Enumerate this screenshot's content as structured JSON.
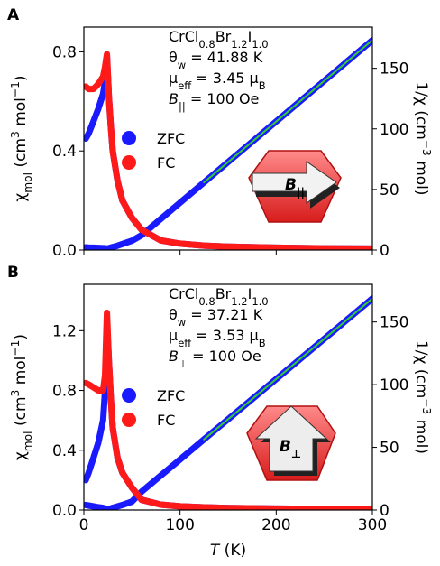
{
  "chart_data": [
    {
      "type": "line",
      "panel_label": "A",
      "annotations": [
        [
          "CrCl",
          {
            "sub": "0.8"
          },
          "Br",
          {
            "sub": "1.2"
          },
          "I",
          {
            "sub": "1.0"
          }
        ],
        [
          "θ",
          {
            "sub": "w"
          },
          " = 41.88 K"
        ],
        [
          "μ",
          {
            "sub": "eff"
          },
          " = 3.45 μ",
          {
            "sub": "B"
          }
        ],
        [
          {
            "it": "B"
          },
          {
            "sub": "||"
          },
          "  =  100 Oe"
        ]
      ],
      "icon_label": [
        {
          "it": "B"
        },
        {
          "sub": "||"
        }
      ],
      "ylabel": [
        "χ",
        {
          "sub": "mol"
        },
        " (cm",
        {
          "sup": "3"
        },
        " mol",
        {
          "sup": "−1"
        },
        ")"
      ],
      "y2label": [
        "1/χ (cm",
        {
          "sup": "−3"
        },
        " mol)"
      ],
      "show_xticklabels": false,
      "x": [
        2,
        5,
        10,
        15,
        20,
        22,
        24,
        26,
        28,
        30,
        35,
        40,
        50,
        60,
        80,
        100,
        125,
        150,
        200,
        250,
        300
      ],
      "xlim": [
        0,
        300
      ],
      "xticks": [
        0,
        100,
        200,
        300
      ],
      "ylim": [
        0,
        0.9
      ],
      "yticks": [
        {
          "value": 0,
          "label": "0.0"
        },
        0.4,
        0.8
      ],
      "y2lim": [
        0,
        184
      ],
      "y2ticks": [
        0,
        50,
        100,
        150
      ],
      "series": [
        {
          "name": "ZFC",
          "color": "#1a1aff",
          "values": [
            0.45,
            0.47,
            0.52,
            0.57,
            0.63,
            0.68,
            0.78,
            0.62,
            0.5,
            0.4,
            0.28,
            0.2,
            0.13,
            0.082,
            0.039,
            0.026,
            0.018,
            0.0138,
            0.0094,
            0.007,
            0.0058
          ]
        },
        {
          "name": "FC",
          "color": "#ff1a1a",
          "values": [
            0.66,
            0.65,
            0.65,
            0.67,
            0.7,
            0.74,
            0.79,
            0.62,
            0.5,
            0.4,
            0.28,
            0.2,
            0.13,
            0.082,
            0.039,
            0.026,
            0.018,
            0.0138,
            0.0094,
            0.007,
            0.0058
          ]
        },
        {
          "color": "#1a1aff",
          "axis": "y2",
          "values": [
            2.2,
            2.1,
            1.9,
            1.8,
            1.6,
            1.5,
            1.3,
            1.6,
            2,
            2.5,
            3.6,
            5,
            7.7,
            12.2,
            25.6,
            39,
            55.8,
            72.6,
            106.1,
            139.7,
            173.2
          ]
        },
        {
          "color": "#33cc33",
          "axis": "y2",
          "fit": true,
          "values": [
            null,
            null,
            null,
            null,
            null,
            null,
            null,
            null,
            null,
            null,
            null,
            null,
            null,
            null,
            null,
            null,
            55.8,
            72.6,
            106.1,
            139.7,
            173.2
          ]
        }
      ]
    },
    {
      "type": "line",
      "panel_label": "B",
      "annotations": [
        [
          "CrCl",
          {
            "sub": "0.8"
          },
          "Br",
          {
            "sub": "1.2"
          },
          "I",
          {
            "sub": "1.0"
          }
        ],
        [
          "θ",
          {
            "sub": "w"
          },
          " = 37.21 K"
        ],
        [
          "μ",
          {
            "sub": "eff"
          },
          " = 3.53 μ",
          {
            "sub": "B"
          }
        ],
        [
          {
            "it": "B"
          },
          {
            "sub": "⊥"
          },
          "  =  100 Oe"
        ]
      ],
      "icon_label": [
        {
          "it": "B"
        },
        {
          "sub": "⊥"
        }
      ],
      "ylabel": [
        "χ",
        {
          "sub": "mol"
        },
        " (cm",
        {
          "sup": "3"
        },
        " mol",
        {
          "sup": "−1"
        },
        ")"
      ],
      "y2label": [
        "1/χ (cm",
        {
          "sup": "−3"
        },
        " mol)"
      ],
      "xlabel": [
        {
          "it": "T"
        },
        " (K)"
      ],
      "show_xticklabels": true,
      "x": [
        2,
        5,
        10,
        15,
        20,
        22,
        24,
        26,
        28,
        30,
        35,
        40,
        50,
        60,
        80,
        100,
        125,
        150,
        200,
        250,
        300
      ],
      "xlim": [
        0,
        300
      ],
      "xticks": [
        0,
        100,
        200,
        300
      ],
      "ylim": [
        0,
        1.51
      ],
      "yticks": [
        {
          "value": 0,
          "label": "0.0"
        },
        0.4,
        0.8,
        1.2
      ],
      "y2lim": [
        0,
        180
      ],
      "y2ticks": [
        0,
        50,
        100,
        150
      ],
      "series": [
        {
          "name": "ZFC",
          "color": "#1a1aff",
          "values": [
            0.2,
            0.25,
            0.35,
            0.45,
            0.6,
            0.8,
            1.25,
            1.0,
            0.75,
            0.55,
            0.35,
            0.25,
            0.15,
            0.068,
            0.036,
            0.025,
            0.018,
            0.0138,
            0.0096,
            0.0073,
            0.0059
          ]
        },
        {
          "name": "FC",
          "color": "#ff1a1a",
          "values": [
            0.85,
            0.84,
            0.82,
            0.8,
            0.8,
            0.9,
            1.32,
            1.0,
            0.75,
            0.55,
            0.35,
            0.25,
            0.15,
            0.068,
            0.036,
            0.025,
            0.018,
            0.0138,
            0.0096,
            0.0073,
            0.0059
          ]
        },
        {
          "color": "#1a1aff",
          "axis": "y2",
          "values": [
            4,
            3.6,
            2.9,
            2.2,
            1.7,
            1.3,
            0.8,
            1,
            1.3,
            1.8,
            2.9,
            4,
            6.7,
            14.6,
            27.5,
            40.3,
            56.4,
            72.4,
            104.5,
            136.6,
            168.7
          ]
        },
        {
          "color": "#33cc33",
          "axis": "y2",
          "fit": true,
          "values": [
            null,
            null,
            null,
            null,
            null,
            null,
            null,
            null,
            null,
            null,
            null,
            null,
            null,
            null,
            null,
            null,
            56.4,
            72.4,
            104.5,
            136.6,
            168.7
          ]
        }
      ]
    }
  ]
}
